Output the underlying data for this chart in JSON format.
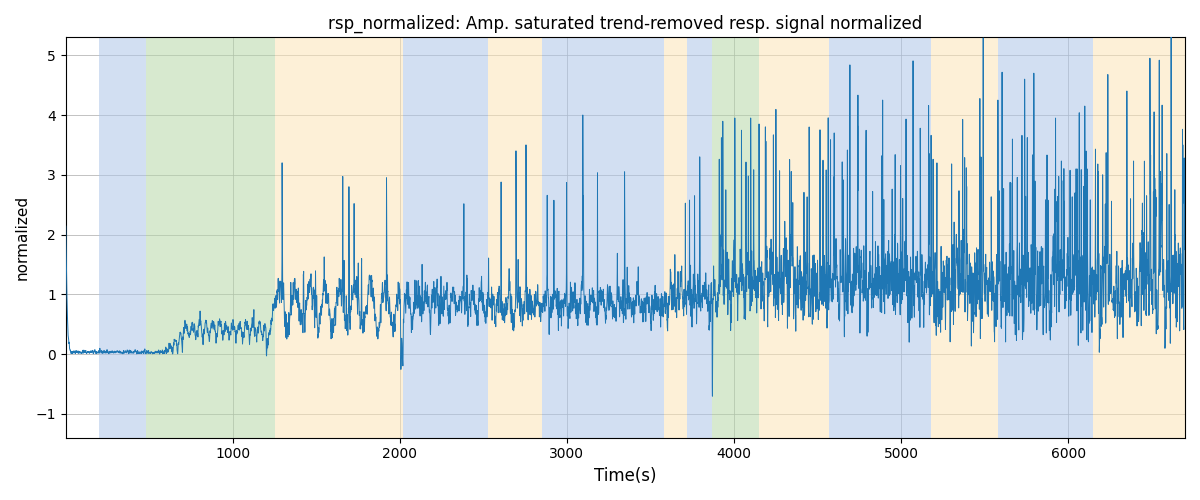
{
  "title": "rsp_normalized: Amp. saturated trend-removed resp. signal normalized",
  "xlabel": "Time(s)",
  "ylabel": "normalized",
  "xlim": [
    0,
    6700
  ],
  "ylim": [
    -1.4,
    5.3
  ],
  "yticks": [
    -1,
    0,
    1,
    2,
    3,
    4,
    5
  ],
  "xticks": [
    1000,
    2000,
    3000,
    4000,
    5000,
    6000
  ],
  "signal_color": "#1f77b4",
  "signal_linewidth": 0.7,
  "background_bands": [
    {
      "xmin": 200,
      "xmax": 480,
      "color": "#aec6e8",
      "alpha": 0.55
    },
    {
      "xmin": 480,
      "xmax": 1250,
      "color": "#b6d7a8",
      "alpha": 0.55
    },
    {
      "xmin": 1250,
      "xmax": 2020,
      "color": "#fce5b6",
      "alpha": 0.55
    },
    {
      "xmin": 2020,
      "xmax": 2530,
      "color": "#aec6e8",
      "alpha": 0.55
    },
    {
      "xmin": 2530,
      "xmax": 2850,
      "color": "#fce5b6",
      "alpha": 0.55
    },
    {
      "xmin": 2850,
      "xmax": 3580,
      "color": "#aec6e8",
      "alpha": 0.55
    },
    {
      "xmin": 3580,
      "xmax": 3720,
      "color": "#fce5b6",
      "alpha": 0.55
    },
    {
      "xmin": 3720,
      "xmax": 3870,
      "color": "#aec6e8",
      "alpha": 0.55
    },
    {
      "xmin": 3870,
      "xmax": 4150,
      "color": "#b6d7a8",
      "alpha": 0.55
    },
    {
      "xmin": 4150,
      "xmax": 4570,
      "color": "#fce5b6",
      "alpha": 0.55
    },
    {
      "xmin": 4570,
      "xmax": 5180,
      "color": "#aec6e8",
      "alpha": 0.55
    },
    {
      "xmin": 5180,
      "xmax": 5580,
      "color": "#fce5b6",
      "alpha": 0.55
    },
    {
      "xmin": 5580,
      "xmax": 6150,
      "color": "#aec6e8",
      "alpha": 0.55
    },
    {
      "xmin": 6150,
      "xmax": 6700,
      "color": "#fce5b6",
      "alpha": 0.55
    }
  ],
  "grid": true,
  "grid_color": "#aaaaaa",
  "grid_linewidth": 0.5,
  "figsize": [
    12,
    5
  ],
  "dpi": 100,
  "seed": 42
}
